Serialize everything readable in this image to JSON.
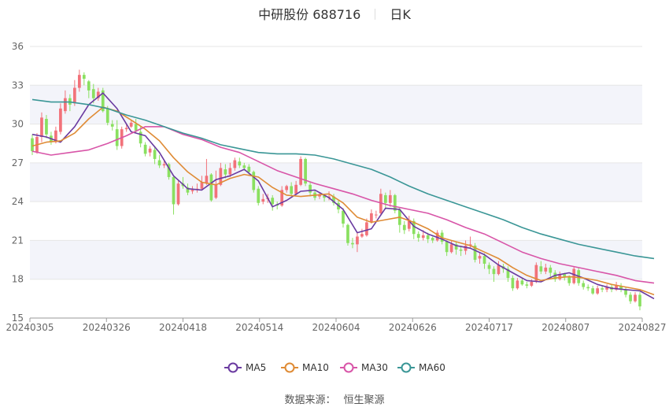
{
  "header": {
    "title": "中研股份 688716",
    "period": "日K"
  },
  "footer": {
    "source_label": "数据来源：",
    "source_value": "恒生聚源"
  },
  "colors": {
    "up": "#f2727a",
    "down": "#8ae060",
    "MA5": "#6a3aa0",
    "MA10": "#df8b35",
    "MA30": "#d855a8",
    "MA60": "#3a9696",
    "band": "#f3f4fa",
    "grid": "#e6e6e6"
  },
  "chart_data": {
    "type": "candlestick",
    "ylim": [
      15,
      36
    ],
    "yticks": [
      15,
      18,
      21,
      24,
      27,
      30,
      33,
      36
    ],
    "grid": true,
    "legend_position": "bottom",
    "xticks": [
      "20240305",
      "20240326",
      "20240418",
      "20240514",
      "20240604",
      "20240626",
      "20240717",
      "20240807",
      "20240827"
    ],
    "candles": [
      [
        28.9,
        27.9,
        29.2,
        27.6
      ],
      [
        27.8,
        29.0,
        29.3,
        27.7
      ],
      [
        29.0,
        30.5,
        30.9,
        28.6
      ],
      [
        30.4,
        29.2,
        30.7,
        28.9
      ],
      [
        29.1,
        28.6,
        29.4,
        28.4
      ],
      [
        28.6,
        29.5,
        29.8,
        28.5
      ],
      [
        29.4,
        31.2,
        31.6,
        29.2
      ],
      [
        31.0,
        32.0,
        32.6,
        30.8
      ],
      [
        32.0,
        31.5,
        32.3,
        31.0
      ],
      [
        31.6,
        32.8,
        33.4,
        31.4
      ],
      [
        32.8,
        33.8,
        34.2,
        32.5
      ],
      [
        33.8,
        33.5,
        34.0,
        33.0
      ],
      [
        33.3,
        32.6,
        33.4,
        32.0
      ],
      [
        32.7,
        32.0,
        33.1,
        31.6
      ],
      [
        32.0,
        32.5,
        32.8,
        31.8
      ],
      [
        32.6,
        31.0,
        32.8,
        30.9
      ],
      [
        31.2,
        30.1,
        31.4,
        29.9
      ],
      [
        30.0,
        29.8,
        30.3,
        29.5
      ],
      [
        29.6,
        28.3,
        30.3,
        28.0
      ],
      [
        28.3,
        29.6,
        29.8,
        28.1
      ],
      [
        29.6,
        29.7,
        30.0,
        29.4
      ],
      [
        29.8,
        30.1,
        30.3,
        29.7
      ],
      [
        30.0,
        29.5,
        30.4,
        29.3
      ],
      [
        29.4,
        28.5,
        29.8,
        28.2
      ],
      [
        28.4,
        27.7,
        28.6,
        27.5
      ],
      [
        27.8,
        28.1,
        28.3,
        27.5
      ],
      [
        28.0,
        27.3,
        28.3,
        26.9
      ],
      [
        27.2,
        26.8,
        27.6,
        26.6
      ],
      [
        26.8,
        26.9,
        27.2,
        26.6
      ],
      [
        26.9,
        25.9,
        27.0,
        25.7
      ],
      [
        25.9,
        23.8,
        26.0,
        23.0
      ],
      [
        23.8,
        25.4,
        25.6,
        23.7
      ],
      [
        25.4,
        25.2,
        25.9,
        25.0
      ],
      [
        25.1,
        24.7,
        25.4,
        24.5
      ],
      [
        24.8,
        24.9,
        25.2,
        24.6
      ],
      [
        24.9,
        25.0,
        25.4,
        24.7
      ],
      [
        25.0,
        25.5,
        26.0,
        24.9
      ],
      [
        25.4,
        26.0,
        27.3,
        25.3
      ],
      [
        26.1,
        24.1,
        26.2,
        24.0
      ],
      [
        24.3,
        25.3,
        26.4,
        24.2
      ],
      [
        25.3,
        26.6,
        27.0,
        25.2
      ],
      [
        26.5,
        26.1,
        26.9,
        25.8
      ],
      [
        26.1,
        26.6,
        27.0,
        25.9
      ],
      [
        26.6,
        27.2,
        27.4,
        26.4
      ],
      [
        27.1,
        26.8,
        27.4,
        26.6
      ],
      [
        26.8,
        26.6,
        27.0,
        26.4
      ],
      [
        26.7,
        26.3,
        26.9,
        26.1
      ],
      [
        26.3,
        24.9,
        26.4,
        24.7
      ],
      [
        25.0,
        23.9,
        25.2,
        23.7
      ],
      [
        24.0,
        24.2,
        24.6,
        23.8
      ],
      [
        24.2,
        24.3,
        24.6,
        23.9
      ],
      [
        24.3,
        23.8,
        24.5,
        23.3
      ],
      [
        23.8,
        23.7,
        24.0,
        23.4
      ],
      [
        23.7,
        24.9,
        25.2,
        23.6
      ],
      [
        24.9,
        25.2,
        25.3,
        24.7
      ],
      [
        25.2,
        24.6,
        25.5,
        24.4
      ],
      [
        24.6,
        25.3,
        25.6,
        24.5
      ],
      [
        25.3,
        27.3,
        27.5,
        25.2
      ],
      [
        27.3,
        25.4,
        27.4,
        25.2
      ],
      [
        25.3,
        24.7,
        25.5,
        24.4
      ],
      [
        24.7,
        24.3,
        24.9,
        24.1
      ],
      [
        24.4,
        24.5,
        24.7,
        24.2
      ],
      [
        24.5,
        24.3,
        24.6,
        24.0
      ],
      [
        24.3,
        24.4,
        24.8,
        24.1
      ],
      [
        24.4,
        23.9,
        24.6,
        23.7
      ],
      [
        23.9,
        23.4,
        24.1,
        23.1
      ],
      [
        23.3,
        22.3,
        23.5,
        22.0
      ],
      [
        22.2,
        20.8,
        22.3,
        20.6
      ],
      [
        20.8,
        20.7,
        21.2,
        20.4
      ],
      [
        20.7,
        21.3,
        21.6,
        20.1
      ],
      [
        21.3,
        21.5,
        21.9,
        21.2
      ],
      [
        21.4,
        22.4,
        22.7,
        21.3
      ],
      [
        22.4,
        23.1,
        23.4,
        22.3
      ],
      [
        23.0,
        23.0,
        23.3,
        22.7
      ],
      [
        23.1,
        24.6,
        25.0,
        23.0
      ],
      [
        24.5,
        23.9,
        24.7,
        23.4
      ],
      [
        23.9,
        24.5,
        24.9,
        23.6
      ],
      [
        24.5,
        23.3,
        24.6,
        23.1
      ],
      [
        23.4,
        22.2,
        23.5,
        21.6
      ],
      [
        22.2,
        21.8,
        22.5,
        21.5
      ],
      [
        21.9,
        22.6,
        22.9,
        21.7
      ],
      [
        22.5,
        21.5,
        22.7,
        21.1
      ],
      [
        21.5,
        21.2,
        21.7,
        20.9
      ],
      [
        21.2,
        21.4,
        21.8,
        21.0
      ],
      [
        21.4,
        21.1,
        21.6,
        20.8
      ],
      [
        21.2,
        21.0,
        21.3,
        20.8
      ],
      [
        21.0,
        21.6,
        21.8,
        20.9
      ],
      [
        21.6,
        20.9,
        21.8,
        20.7
      ],
      [
        20.9,
        20.1,
        21.0,
        19.8
      ],
      [
        20.1,
        20.7,
        21.0,
        20.0
      ],
      [
        20.7,
        20.3,
        20.9,
        19.9
      ],
      [
        20.3,
        20.2,
        20.6,
        19.8
      ],
      [
        20.2,
        20.6,
        21.0,
        19.9
      ],
      [
        20.6,
        20.7,
        21.3,
        20.4
      ],
      [
        20.6,
        19.5,
        20.8,
        19.3
      ],
      [
        19.6,
        19.8,
        20.1,
        19.2
      ],
      [
        19.8,
        19.2,
        20.0,
        18.8
      ],
      [
        19.1,
        18.8,
        19.3,
        18.4
      ],
      [
        18.8,
        18.4,
        19.0,
        17.8
      ],
      [
        18.4,
        19.1,
        19.4,
        18.3
      ],
      [
        19.0,
        18.8,
        19.2,
        18.5
      ],
      [
        18.8,
        18.1,
        19.0,
        17.8
      ],
      [
        18.1,
        17.3,
        18.3,
        17.1
      ],
      [
        17.3,
        17.9,
        18.1,
        17.2
      ],
      [
        17.9,
        17.6,
        18.1,
        17.5
      ],
      [
        17.6,
        17.5,
        17.8,
        17.3
      ],
      [
        17.5,
        17.8,
        18.0,
        17.4
      ],
      [
        17.8,
        19.1,
        19.3,
        17.7
      ],
      [
        19.0,
        18.6,
        19.4,
        18.4
      ],
      [
        18.6,
        18.9,
        19.2,
        18.4
      ],
      [
        18.9,
        18.5,
        19.1,
        18.2
      ],
      [
        18.5,
        18.0,
        18.7,
        17.8
      ],
      [
        18.0,
        18.4,
        18.6,
        17.9
      ],
      [
        18.4,
        18.2,
        18.5,
        17.9
      ],
      [
        18.2,
        17.7,
        18.3,
        17.5
      ],
      [
        17.7,
        18.8,
        19.0,
        17.6
      ],
      [
        18.7,
        17.7,
        18.9,
        17.5
      ],
      [
        17.7,
        17.4,
        17.9,
        17.2
      ],
      [
        17.4,
        17.3,
        17.6,
        17.1
      ],
      [
        17.3,
        16.9,
        17.5,
        16.8
      ],
      [
        16.9,
        17.3,
        17.5,
        16.8
      ],
      [
        17.3,
        17.2,
        17.5,
        17.0
      ],
      [
        17.2,
        17.4,
        17.6,
        17.0
      ],
      [
        17.4,
        17.2,
        17.6,
        17.0
      ],
      [
        17.2,
        17.5,
        17.8,
        17.1
      ],
      [
        17.5,
        17.2,
        17.7,
        17.0
      ],
      [
        17.2,
        16.8,
        17.4,
        16.6
      ],
      [
        16.8,
        16.3,
        17.0,
        16.1
      ],
      [
        16.3,
        16.8,
        17.0,
        16.2
      ],
      [
        16.8,
        15.9,
        17.0,
        15.6
      ]
    ],
    "series": [
      {
        "name": "MA5",
        "values": [
          [
            0,
            29.2
          ],
          [
            3,
            29.0
          ],
          [
            6,
            28.6
          ],
          [
            9,
            29.8
          ],
          [
            12,
            31.5
          ],
          [
            15,
            32.4
          ],
          [
            18,
            31.2
          ],
          [
            21,
            29.4
          ],
          [
            24,
            29.1
          ],
          [
            27,
            27.8
          ],
          [
            30,
            26.0
          ],
          [
            33,
            25.0
          ],
          [
            36,
            24.9
          ],
          [
            39,
            25.7
          ],
          [
            42,
            26.0
          ],
          [
            45,
            26.5
          ],
          [
            48,
            25.6
          ],
          [
            51,
            23.6
          ],
          [
            54,
            24.1
          ],
          [
            57,
            24.8
          ],
          [
            60,
            24.9
          ],
          [
            63,
            24.3
          ],
          [
            66,
            23.4
          ],
          [
            69,
            21.6
          ],
          [
            72,
            21.9
          ],
          [
            75,
            23.5
          ],
          [
            78,
            23.4
          ],
          [
            81,
            22.1
          ],
          [
            84,
            21.5
          ],
          [
            87,
            21.1
          ],
          [
            90,
            20.6
          ],
          [
            93,
            20.4
          ],
          [
            96,
            19.9
          ],
          [
            99,
            19.1
          ],
          [
            102,
            18.5
          ],
          [
            105,
            17.9
          ],
          [
            108,
            17.8
          ],
          [
            111,
            18.3
          ],
          [
            114,
            18.5
          ],
          [
            117,
            18.1
          ],
          [
            120,
            17.6
          ],
          [
            123,
            17.3
          ],
          [
            126,
            17.2
          ],
          [
            129,
            17.1
          ],
          [
            132,
            16.5
          ]
        ]
      },
      {
        "name": "MA10",
        "values": [
          [
            0,
            28.3
          ],
          [
            3,
            28.6
          ],
          [
            6,
            28.7
          ],
          [
            9,
            29.3
          ],
          [
            12,
            30.4
          ],
          [
            15,
            31.3
          ],
          [
            18,
            31.0
          ],
          [
            21,
            30.3
          ],
          [
            24,
            29.6
          ],
          [
            27,
            28.7
          ],
          [
            30,
            27.4
          ],
          [
            33,
            26.3
          ],
          [
            36,
            25.5
          ],
          [
            39,
            25.3
          ],
          [
            42,
            25.8
          ],
          [
            45,
            26.1
          ],
          [
            48,
            25.9
          ],
          [
            51,
            25.1
          ],
          [
            54,
            24.5
          ],
          [
            57,
            24.4
          ],
          [
            60,
            24.5
          ],
          [
            63,
            24.6
          ],
          [
            66,
            23.9
          ],
          [
            69,
            22.8
          ],
          [
            72,
            22.4
          ],
          [
            75,
            22.6
          ],
          [
            78,
            22.8
          ],
          [
            81,
            22.4
          ],
          [
            84,
            21.9
          ],
          [
            87,
            21.2
          ],
          [
            90,
            20.9
          ],
          [
            93,
            20.6
          ],
          [
            96,
            20.1
          ],
          [
            99,
            19.6
          ],
          [
            102,
            18.9
          ],
          [
            105,
            18.3
          ],
          [
            108,
            17.9
          ],
          [
            111,
            18.1
          ],
          [
            114,
            18.2
          ],
          [
            117,
            18.1
          ],
          [
            120,
            17.9
          ],
          [
            123,
            17.6
          ],
          [
            126,
            17.4
          ],
          [
            129,
            17.2
          ],
          [
            132,
            16.8
          ]
        ]
      },
      {
        "name": "MA30",
        "values": [
          [
            0,
            27.9
          ],
          [
            4,
            27.6
          ],
          [
            8,
            27.8
          ],
          [
            12,
            28.0
          ],
          [
            16,
            28.5
          ],
          [
            20,
            29.1
          ],
          [
            24,
            29.8
          ],
          [
            28,
            29.8
          ],
          [
            32,
            29.2
          ],
          [
            36,
            28.8
          ],
          [
            40,
            28.2
          ],
          [
            44,
            27.8
          ],
          [
            48,
            27.1
          ],
          [
            52,
            26.4
          ],
          [
            56,
            25.9
          ],
          [
            60,
            25.4
          ],
          [
            64,
            25.0
          ],
          [
            68,
            24.6
          ],
          [
            72,
            24.1
          ],
          [
            76,
            23.7
          ],
          [
            80,
            23.4
          ],
          [
            84,
            23.1
          ],
          [
            88,
            22.6
          ],
          [
            92,
            22.0
          ],
          [
            96,
            21.5
          ],
          [
            100,
            20.8
          ],
          [
            104,
            20.1
          ],
          [
            108,
            19.6
          ],
          [
            112,
            19.2
          ],
          [
            116,
            18.9
          ],
          [
            120,
            18.6
          ],
          [
            124,
            18.3
          ],
          [
            128,
            17.9
          ],
          [
            132,
            17.7
          ]
        ]
      },
      {
        "name": "MA60",
        "values": [
          [
            0,
            31.9
          ],
          [
            4,
            31.7
          ],
          [
            8,
            31.7
          ],
          [
            12,
            31.5
          ],
          [
            16,
            31.2
          ],
          [
            20,
            30.7
          ],
          [
            24,
            30.3
          ],
          [
            28,
            29.8
          ],
          [
            32,
            29.3
          ],
          [
            36,
            28.9
          ],
          [
            40,
            28.4
          ],
          [
            44,
            28.1
          ],
          [
            48,
            27.8
          ],
          [
            52,
            27.7
          ],
          [
            56,
            27.7
          ],
          [
            60,
            27.6
          ],
          [
            64,
            27.3
          ],
          [
            68,
            26.9
          ],
          [
            72,
            26.5
          ],
          [
            76,
            25.9
          ],
          [
            80,
            25.2
          ],
          [
            84,
            24.6
          ],
          [
            88,
            24.1
          ],
          [
            92,
            23.6
          ],
          [
            96,
            23.1
          ],
          [
            100,
            22.6
          ],
          [
            104,
            22.0
          ],
          [
            108,
            21.5
          ],
          [
            112,
            21.1
          ],
          [
            116,
            20.7
          ],
          [
            120,
            20.4
          ],
          [
            124,
            20.1
          ],
          [
            128,
            19.8
          ],
          [
            132,
            19.6
          ]
        ]
      }
    ]
  }
}
